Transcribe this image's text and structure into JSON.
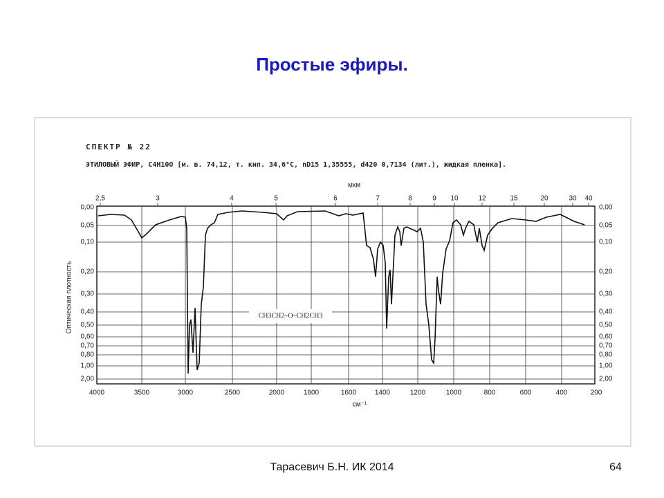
{
  "title": "Простые эфиры.",
  "spectrum": {
    "header": "СПЕКТР № 22",
    "description": "ЭТИЛОВЫЙ ЭФИР, C4H10O [м. в. 74,12, т. кип. 34,6°С, nD15 1,35555, d420 0,7134 (лит.), жидкая пленка].",
    "micron_unit": "мкм",
    "micron_labels": [
      "2,5",
      "3",
      "4",
      "5",
      "6",
      "7",
      "8",
      "9",
      "10",
      "12",
      "15",
      "20",
      "30",
      "40"
    ],
    "wavenumber_unit": "см⁻¹",
    "wavenumber_labels": [
      "4000",
      "3500",
      "3000",
      "2500",
      "2000",
      "1800",
      "1600",
      "1400",
      "1200",
      "1000",
      "800",
      "600",
      "400",
      "200"
    ],
    "density_axis": "Оптическая плотность",
    "density_labels": [
      "0,00",
      "0,05",
      "0,10",
      "0,20",
      "0,30",
      "0,40",
      "0,50",
      "0,60",
      "0,70",
      "0,80",
      "1,00",
      "2,00"
    ],
    "formula": "CH3CH2–O–CH2CH3"
  },
  "footer": {
    "author": "Тарасевич Б.Н.  ИК 2014",
    "page": "64"
  }
}
